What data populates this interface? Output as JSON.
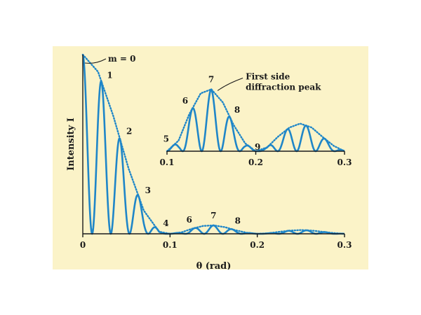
{
  "colors": {
    "background": "#fbf3c8",
    "curve": "#1f86c8",
    "axis": "#1a1a1a",
    "text": "#1a1a1a"
  },
  "chart_data": [
    {
      "type": "line",
      "title": "",
      "xlabel": "θ (rad)",
      "ylabel": "Intensity I",
      "xlim": [
        0,
        0.3
      ],
      "ylim": [
        0,
        1
      ],
      "x_ticks": [
        "0",
        "0.1",
        "0.2",
        "0.3"
      ],
      "grid": false,
      "series": [
        {
          "style": "dotted-envelope",
          "x": [
            0,
            0.0175,
            0.035,
            0.0525,
            0.07,
            0.0875,
            0.1,
            0.113,
            0.125,
            0.138,
            0.15,
            0.163,
            0.175,
            0.188,
            0.2,
            0.213,
            0.225,
            0.238,
            0.25,
            0.263,
            0.275,
            0.288,
            0.3
          ],
          "y": [
            1.0,
            0.904,
            0.657,
            0.364,
            0.129,
            0.012,
            0.0,
            0.008,
            0.028,
            0.044,
            0.047,
            0.037,
            0.02,
            0.006,
            0.0,
            0.003,
            0.011,
            0.018,
            0.021,
            0.018,
            0.011,
            0.004,
            0.0
          ]
        },
        {
          "style": "solid-fringes",
          "fringe_spacing": 0.0214,
          "envelope": "single-slit",
          "maxima": [
            {
              "m": "0",
              "x": 0.0,
              "y": 1.0
            },
            {
              "m": "1",
              "x": 0.0214,
              "y": 0.858
            },
            {
              "m": "2",
              "x": 0.0428,
              "y": 0.537
            },
            {
              "m": "3",
              "x": 0.0642,
              "y": 0.208
            },
            {
              "m": "4",
              "x": 0.0856,
              "y": 0.028
            },
            {
              "m": "6",
              "x": 0.1284,
              "y": 0.032
            },
            {
              "m": "7",
              "x": 0.1498,
              "y": 0.047
            },
            {
              "m": "8",
              "x": 0.1712,
              "y": 0.025
            }
          ]
        }
      ],
      "annotations": [
        {
          "text": "m = 0",
          "italic_prefix": "m",
          "x": 0.0
        },
        {
          "text": "1",
          "x": 0.0214
        },
        {
          "text": "2",
          "x": 0.0428
        },
        {
          "text": "3",
          "x": 0.0642
        },
        {
          "text": "4",
          "x": 0.0856
        },
        {
          "text": "6",
          "x": 0.1284
        },
        {
          "text": "7",
          "x": 0.1498
        },
        {
          "text": "8",
          "x": 0.1712
        }
      ]
    },
    {
      "type": "line",
      "title": "",
      "xlabel": "",
      "ylabel": "",
      "xlim": [
        0.1,
        0.3
      ],
      "ylim": [
        0,
        0.05
      ],
      "x_ticks": [
        "0.1",
        "0.2",
        "0.3"
      ],
      "grid": false,
      "callout": "First side diffraction peak",
      "callout_lines": [
        "First side",
        "diffraction peak"
      ],
      "series": [
        {
          "style": "dotted-envelope",
          "x": [
            0.1,
            0.113,
            0.125,
            0.138,
            0.15,
            0.163,
            0.175,
            0.188,
            0.2,
            0.213,
            0.225,
            0.238,
            0.25,
            0.263,
            0.275,
            0.288,
            0.3
          ],
          "y": [
            0.0,
            0.008,
            0.028,
            0.044,
            0.047,
            0.037,
            0.02,
            0.006,
            0.0,
            0.003,
            0.011,
            0.018,
            0.021,
            0.018,
            0.011,
            0.004,
            0.0
          ]
        },
        {
          "style": "solid-fringes",
          "fringe_spacing": 0.0214,
          "maxima": [
            {
              "m": "5",
              "x": 0.107,
              "y": 0.004
            },
            {
              "m": "6",
              "x": 0.1284,
              "y": 0.032
            },
            {
              "m": "7",
              "x": 0.1498,
              "y": 0.047
            },
            {
              "m": "8",
              "x": 0.1712,
              "y": 0.025
            },
            {
              "m": "9",
              "x": 0.1926,
              "y": 0.002
            }
          ]
        }
      ],
      "annotations": [
        {
          "text": "5",
          "x": 0.107
        },
        {
          "text": "6",
          "x": 0.1284
        },
        {
          "text": "7",
          "x": 0.1498
        },
        {
          "text": "8",
          "x": 0.1712
        },
        {
          "text": "9",
          "x": 0.1926
        }
      ]
    }
  ]
}
